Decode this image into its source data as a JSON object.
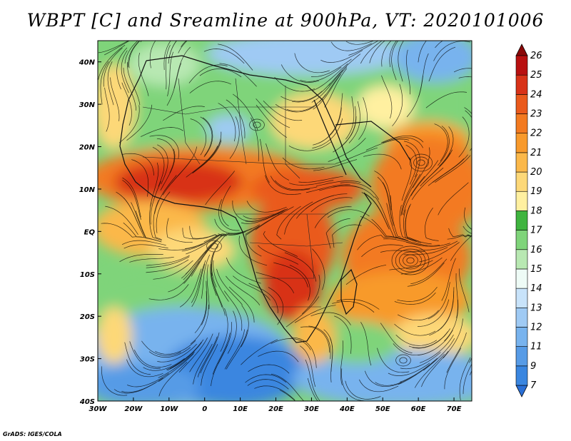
{
  "title": "WBPT [C] and Sreamline at 900hPa, VT: 2020101006",
  "credit": "GrADS: IGES/COLA",
  "map": {
    "lon_range": [
      -30,
      75
    ],
    "lat_range": [
      -40,
      45
    ],
    "lon_ticks": [
      {
        "value": -30,
        "label": "30W"
      },
      {
        "value": -20,
        "label": "20W"
      },
      {
        "value": -10,
        "label": "10W"
      },
      {
        "value": 0,
        "label": "0"
      },
      {
        "value": 10,
        "label": "10E"
      },
      {
        "value": 20,
        "label": "20E"
      },
      {
        "value": 30,
        "label": "30E"
      },
      {
        "value": 40,
        "label": "40E"
      },
      {
        "value": 50,
        "label": "50E"
      },
      {
        "value": 60,
        "label": "60E"
      },
      {
        "value": 70,
        "label": "70E"
      }
    ],
    "lat_ticks": [
      {
        "value": 40,
        "label": "40N"
      },
      {
        "value": 30,
        "label": "30N"
      },
      {
        "value": 20,
        "label": "20N"
      },
      {
        "value": 10,
        "label": "10N"
      },
      {
        "value": 0,
        "label": "EQ"
      },
      {
        "value": -10,
        "label": "10S"
      },
      {
        "value": -20,
        "label": "20S"
      },
      {
        "value": -30,
        "label": "30S"
      },
      {
        "value": -40,
        "label": "40S"
      }
    ]
  },
  "colorbar": {
    "levels": [
      "7",
      "9",
      "11",
      "12",
      "13",
      "14",
      "15",
      "16",
      "17",
      "18",
      "19",
      "20",
      "21",
      "22",
      "23",
      "24",
      "25",
      "26"
    ],
    "colors": [
      "#2a6fd6",
      "#3a86e0",
      "#579be6",
      "#78b3ee",
      "#9fcaf4",
      "#c8e3fa",
      "#eefbf6",
      "#b8e8b2",
      "#7fd47a",
      "#3fb43f",
      "#fff0a0",
      "#fdd878",
      "#fbb84a",
      "#f89a2c",
      "#f37a20",
      "#ea5a1c",
      "#d83218",
      "#b81010",
      "#8a0808"
    ]
  }
}
